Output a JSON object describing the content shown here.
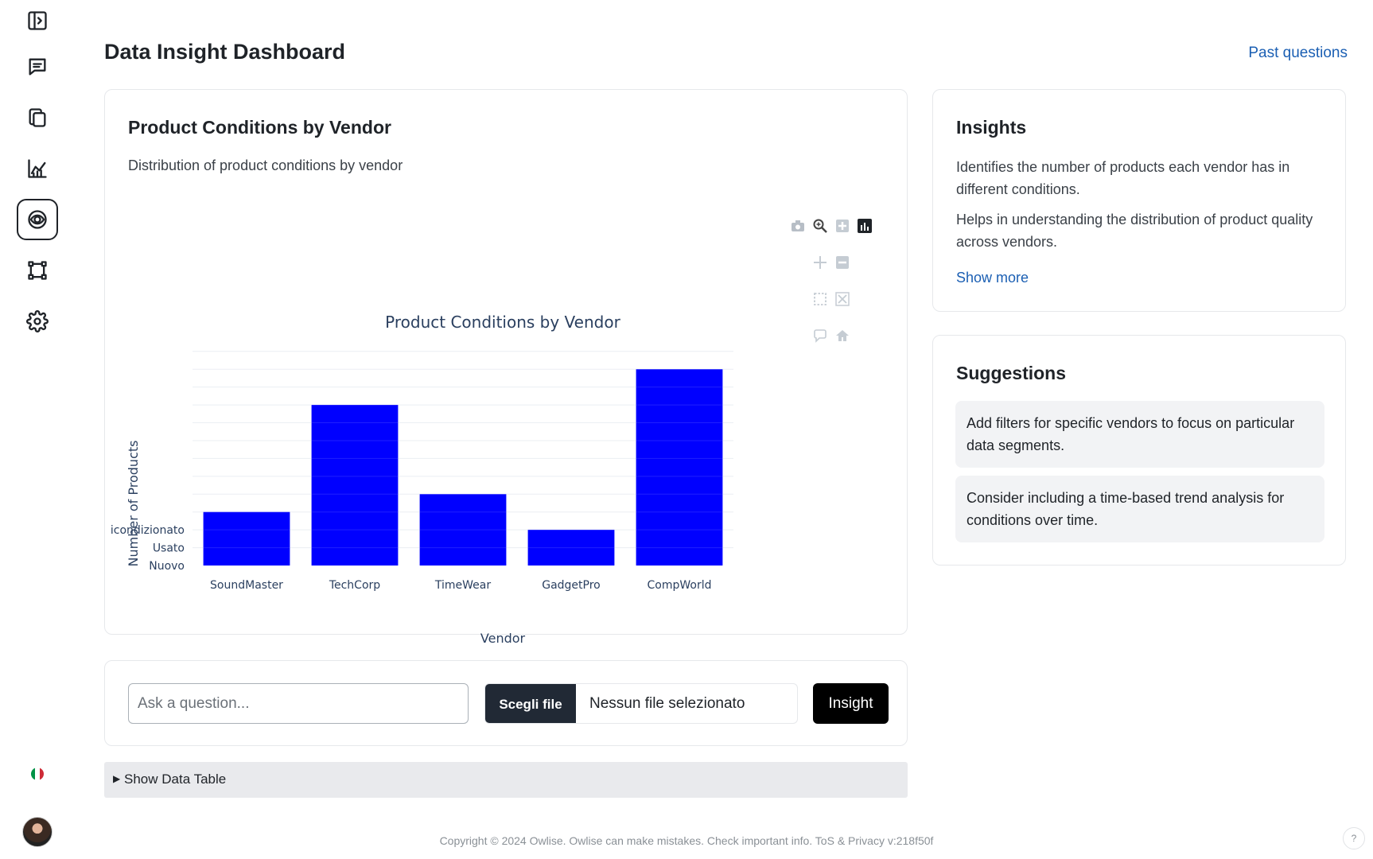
{
  "sidebar": {
    "items": [
      {
        "name": "sidebar-toggle",
        "icon": "sidebar-toggle-icon"
      },
      {
        "name": "chat",
        "icon": "chat-icon"
      },
      {
        "name": "documents",
        "icon": "documents-icon"
      },
      {
        "name": "analytics",
        "icon": "line-chart-icon"
      },
      {
        "name": "insight",
        "icon": "eye-scan-icon",
        "active": true
      },
      {
        "name": "workflow",
        "icon": "nodes-icon"
      },
      {
        "name": "settings",
        "icon": "gear-icon"
      }
    ],
    "language_flag": "italy-flag-icon",
    "flag_colors": [
      "#009246",
      "#ffffff",
      "#ce2b37"
    ]
  },
  "header": {
    "title": "Data Insight Dashboard",
    "past_questions_label": "Past questions"
  },
  "chart_card": {
    "title": "Product Conditions by Vendor",
    "subtitle": "Distribution of product conditions by vendor"
  },
  "chart_data": {
    "type": "bar",
    "title": "Product Conditions by Vendor",
    "xlabel": "Vendor",
    "ylabel": "Number of Products",
    "categories": [
      "SoundMaster",
      "TechCorp",
      "TimeWear",
      "GadgetPro",
      "CompWorld"
    ],
    "values": [
      3,
      9,
      4,
      2,
      11
    ],
    "y_ticks": [
      {
        "value": 0,
        "label": "Nuovo"
      },
      {
        "value": 1,
        "label": "Usato"
      },
      {
        "value": 2,
        "label": "icondizionato"
      }
    ],
    "ylim": [
      0,
      12
    ],
    "bar_color": "#0000ff",
    "grid": true,
    "legend": "none"
  },
  "insights": {
    "title": "Insights",
    "items": [
      "Identifies the number of products each vendor has in different conditions.",
      "Helps in understanding the distribution of product quality across vendors."
    ],
    "show_more_label": "Show more"
  },
  "suggestions": {
    "title": "Suggestions",
    "items": [
      "Add filters for specific vendors to focus on particular data segments.",
      "Consider including a time-based trend analysis for conditions over time."
    ]
  },
  "ask": {
    "placeholder": "Ask a question...",
    "value": "",
    "file_button_label": "Scegli file",
    "file_status": "Nessun file selezionato",
    "submit_label": "Insight"
  },
  "data_table": {
    "toggle_label": "Show Data Table"
  },
  "footer": {
    "text": "Copyright © 2024 Owlise. Owlise can make mistakes. Check important info. ToS & Privacy v:218f50f",
    "help_label": "?"
  }
}
